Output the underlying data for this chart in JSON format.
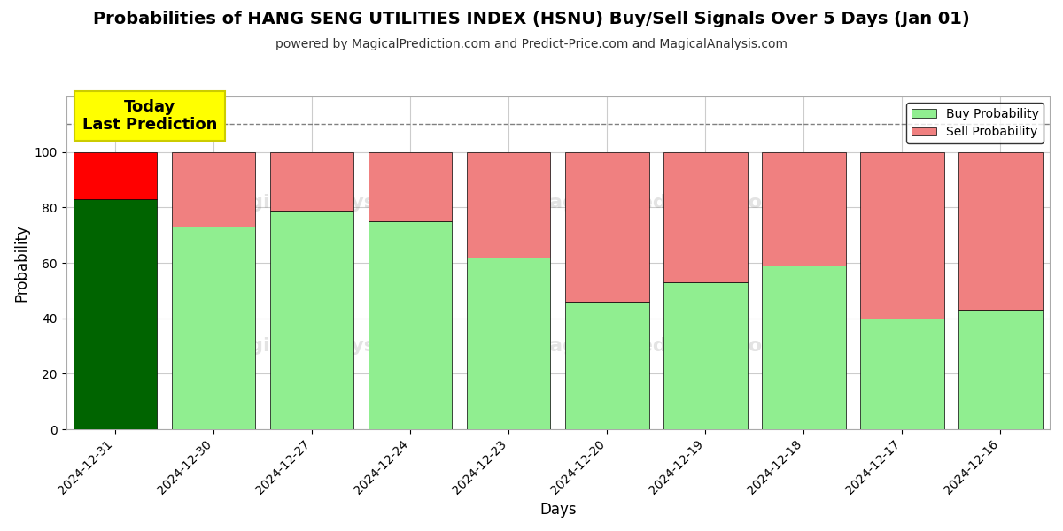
{
  "title": "Probabilities of HANG SENG UTILITIES INDEX (HSNU) Buy/Sell Signals Over 5 Days (Jan 01)",
  "subtitle": "powered by MagicalPrediction.com and Predict-Price.com and MagicalAnalysis.com",
  "xlabel": "Days",
  "ylabel": "Probability",
  "dates": [
    "2024-12-31",
    "2024-12-30",
    "2024-12-27",
    "2024-12-24",
    "2024-12-23",
    "2024-12-20",
    "2024-12-19",
    "2024-12-18",
    "2024-12-17",
    "2024-12-16"
  ],
  "buy_values": [
    83,
    73,
    79,
    75,
    62,
    46,
    53,
    59,
    40,
    43
  ],
  "sell_values": [
    17,
    27,
    21,
    25,
    38,
    54,
    47,
    41,
    60,
    57
  ],
  "today_idx": 0,
  "buy_color_today": "#006400",
  "sell_color_today": "#FF0000",
  "buy_color_normal": "#90EE90",
  "sell_color_normal": "#F08080",
  "today_box_color": "#FFFF00",
  "today_box_text": "Today\nLast Prediction",
  "ylim": [
    0,
    120
  ],
  "yticks": [
    0,
    20,
    40,
    60,
    80,
    100
  ],
  "dashed_line_y": 110,
  "legend_buy": "Buy Probability",
  "legend_sell": "Sell Probability",
  "background_color": "#ffffff",
  "grid_color": "#cccccc",
  "bar_width": 0.85,
  "title_fontsize": 14,
  "subtitle_fontsize": 10
}
